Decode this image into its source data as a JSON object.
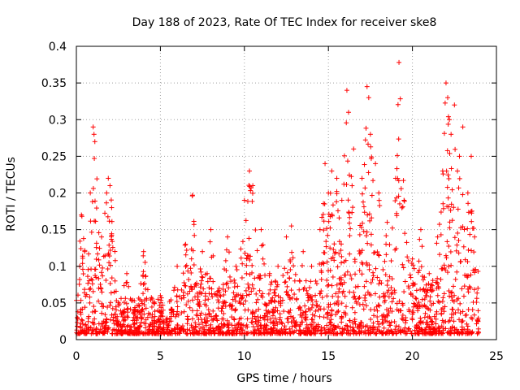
{
  "chart_data": {
    "type": "scatter",
    "title": "Day 188 of 2023, Rate Of TEC Index for receiver ske8",
    "xlabel": "GPS time / hours",
    "ylabel": "ROTI / TECUs",
    "xlim": [
      0,
      25
    ],
    "ylim": [
      0,
      0.4
    ],
    "x_ticks": [
      0,
      5,
      10,
      15,
      20,
      25
    ],
    "y_ticks": [
      0,
      0.05,
      0.1,
      0.15,
      0.2,
      0.25,
      0.3,
      0.35,
      0.4
    ],
    "x_tick_labels": [
      "0",
      "5",
      "10",
      "15",
      "20",
      "25"
    ],
    "y_tick_labels": [
      "0",
      "0.05",
      "0.1",
      "0.15",
      "0.2",
      "0.25",
      "0.3",
      "0.35",
      "0.4"
    ],
    "grid": true,
    "marker": "plus",
    "marker_color": "#ff0000",
    "data_x_range": [
      0,
      24
    ],
    "series": [
      {
        "x": [
          0.05,
          0.2,
          0.3,
          0.5,
          0.8,
          1.0,
          1.05,
          1.1,
          1.5,
          1.8,
          1.9,
          2.0,
          2.1,
          2.3,
          3.0,
          3.5,
          4.0,
          4.5,
          5.0,
          5.5,
          6.0,
          6.5,
          6.9,
          7.0,
          7.5,
          8.0,
          8.5,
          9.0,
          9.5,
          10.0,
          10.3,
          10.4,
          10.5,
          11.0,
          11.5,
          12.0,
          12.5,
          12.8,
          13.0,
          13.5,
          14.0,
          14.5,
          14.8,
          15.0,
          15.2,
          15.5,
          15.8,
          16.1,
          16.2,
          16.5,
          17.0,
          17.3,
          17.4,
          17.5,
          17.8,
          18.0,
          18.5,
          19.0,
          19.2,
          19.5,
          20.0,
          20.5,
          21.0,
          21.5,
          21.8,
          22.0,
          22.1,
          22.2,
          22.3,
          22.5,
          22.8,
          23.0,
          23.3,
          23.5,
          23.7,
          23.9
        ],
        "y": [
          0.03,
          0.1,
          0.17,
          0.12,
          0.05,
          0.29,
          0.28,
          0.27,
          0.14,
          0.2,
          0.22,
          0.21,
          0.18,
          0.08,
          0.09,
          0.04,
          0.12,
          0.03,
          0.06,
          0.02,
          0.1,
          0.13,
          0.196,
          0.157,
          0.12,
          0.15,
          0.07,
          0.14,
          0.1,
          0.19,
          0.23,
          0.207,
          0.21,
          0.15,
          0.09,
          0.1,
          0.14,
          0.155,
          0.08,
          0.12,
          0.1,
          0.15,
          0.24,
          0.2,
          0.23,
          0.22,
          0.19,
          0.34,
          0.31,
          0.26,
          0.22,
          0.345,
          0.33,
          0.28,
          0.24,
          0.2,
          0.16,
          0.22,
          0.378,
          0.19,
          0.11,
          0.15,
          0.09,
          0.14,
          0.23,
          0.35,
          0.33,
          0.3,
          0.28,
          0.32,
          0.25,
          0.29,
          0.2,
          0.25,
          0.14,
          0.07
        ]
      }
    ]
  }
}
